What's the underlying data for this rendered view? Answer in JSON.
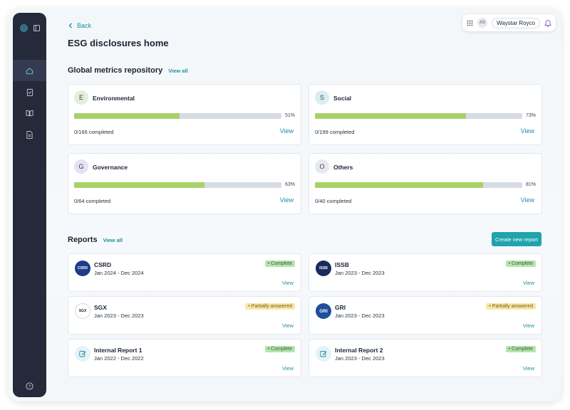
{
  "header": {
    "back_label": "Back",
    "page_title": "ESG disclosures home"
  },
  "topbar": {
    "user_initials": "AS",
    "org_name": "Waystar Royco"
  },
  "metrics": {
    "title": "Global metrics repository",
    "view_all": "View all",
    "cards": [
      {
        "letter": "E",
        "name": "Environmental",
        "progress": 51,
        "percent_label": "51%",
        "count": "0/166 completed",
        "view": "View",
        "letter_bg": "#e3eedb"
      },
      {
        "letter": "S",
        "name": "Social",
        "progress": 73,
        "percent_label": "73%",
        "count": "0/199 completed",
        "view": "View",
        "letter_bg": "#d9eef2"
      },
      {
        "letter": "G",
        "name": "Governance",
        "progress": 63,
        "percent_label": "63%",
        "count": "0/64 completed",
        "view": "View",
        "letter_bg": "#e4e2f3"
      },
      {
        "letter": "O",
        "name": "Others",
        "progress": 81,
        "percent_label": "81%",
        "count": "0/40 completed",
        "view": "View",
        "letter_bg": "#e7e9ee"
      }
    ]
  },
  "reports": {
    "title": "Reports",
    "view_all": "View all",
    "create_label": "Create new report",
    "items": [
      {
        "name": "CSRD",
        "dates": "Jan 2024 - Dec 2024",
        "status": "• Complete",
        "view": "View",
        "logo_text": "CSRD"
      },
      {
        "name": "ISSB",
        "dates": "Jan 2023 - Dec 2023",
        "status": "• Complete",
        "view": "View",
        "logo_text": "ISSB"
      },
      {
        "name": "SGX",
        "dates": "Jan 2023 - Dec 2023",
        "status": "• Partially answered",
        "view": "View",
        "logo_text": "SGX"
      },
      {
        "name": "GRI",
        "dates": "Jan 2023 - Dec 2023",
        "status": "• Partially answered",
        "view": "View",
        "logo_text": "GRI"
      },
      {
        "name": "Internal Report 1",
        "dates": "Jan 2022 - Dec 2022",
        "status": "• Complete",
        "view": "View"
      },
      {
        "name": "Internal Report 2",
        "dates": "Jan 2023 - Dec 2023",
        "status": "• Complete",
        "view": "View"
      }
    ]
  },
  "icons": {
    "sidebar": [
      "logo-icon",
      "sidebar-toggle-icon",
      "home-icon",
      "clipboard-icon",
      "book-icon",
      "document-icon",
      "help-icon"
    ],
    "topbar": [
      "apps-grid-icon",
      "bell-icon"
    ]
  },
  "colors": {
    "accent": "#1d8fa0",
    "button": "#20a3ad",
    "sidebar": "#252a3a",
    "progress": "#a9d16a"
  }
}
